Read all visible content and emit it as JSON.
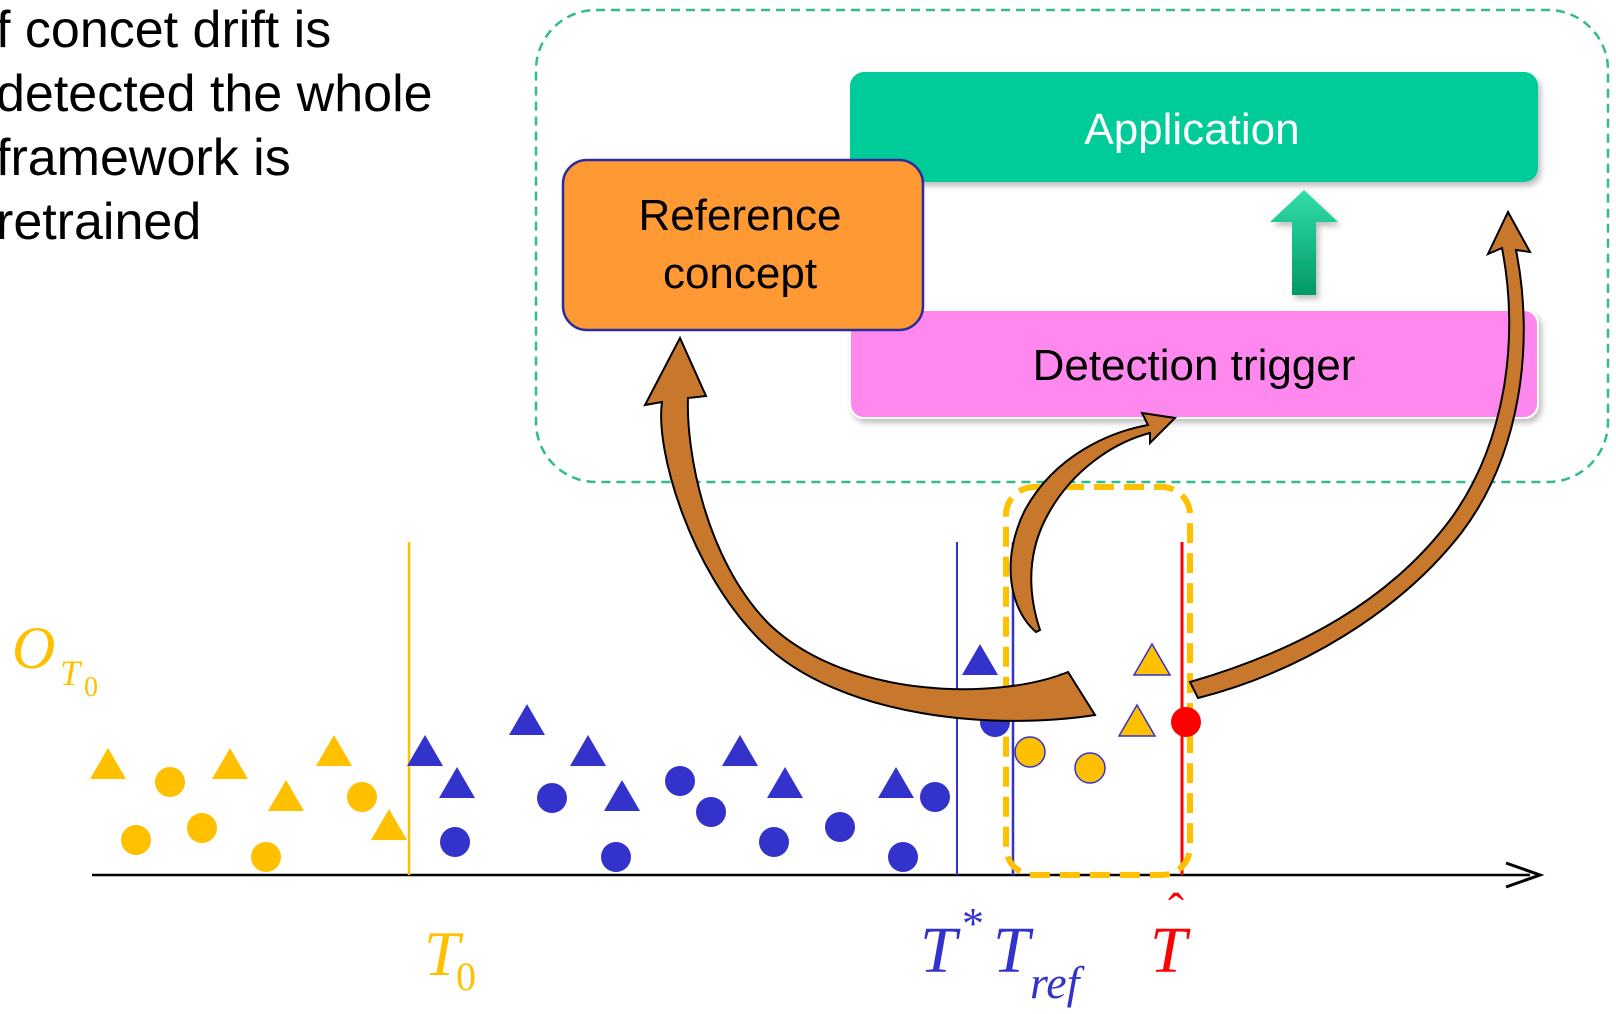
{
  "caption": {
    "lines": [
      "f concet drift is",
      "detected the whole",
      "framework is",
      "retrained"
    ]
  },
  "boxes": {
    "application": "Application",
    "reference_concept_line1": "Reference",
    "reference_concept_line2": "concept",
    "detection_trigger": "Detection trigger"
  },
  "timeline_labels": {
    "o_t0": {
      "base": "O",
      "sub": "T",
      "subsub": "0"
    },
    "t0": {
      "base": "T",
      "sub": "0"
    },
    "t_star": {
      "base": "T",
      "sup": "*"
    },
    "t_ref": {
      "base": "T",
      "sub": "ref"
    },
    "t_hat": {
      "base": "T",
      "accent": "ˆ"
    }
  },
  "colors": {
    "yellow": "#FFC000",
    "blue": "#3333CC",
    "red": "#FF0000",
    "green": "#00CC99",
    "pink": "#FF88EE",
    "orange": "#FF9933",
    "arrow_orange": "#C8782C",
    "dashed_frame": "#33BB88",
    "black": "#000000"
  },
  "icons": {
    "up_arrow": "green-up-arrow-icon"
  }
}
